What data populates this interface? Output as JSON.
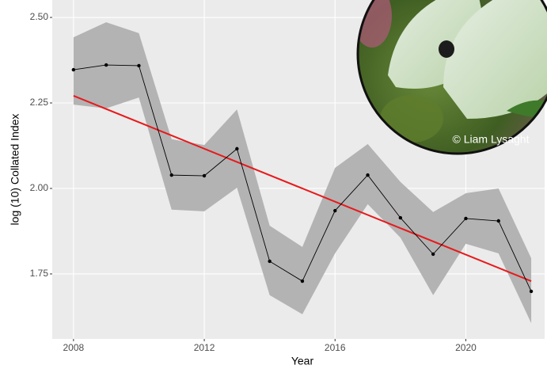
{
  "chart_data": {
    "type": "line",
    "xlabel": "Year",
    "ylabel": "log (10) Collated Index",
    "annotation": "© Liam Lysaght",
    "x": [
      2008,
      2009,
      2010,
      2011,
      2012,
      2013,
      2014,
      2015,
      2016,
      2017,
      2018,
      2019,
      2020,
      2021,
      2022
    ],
    "values": [
      2.347,
      2.361,
      2.359,
      2.039,
      2.037,
      2.116,
      1.787,
      1.729,
      1.935,
      2.039,
      1.914,
      1.808,
      1.912,
      1.905,
      1.699
    ],
    "upper": [
      2.442,
      2.486,
      2.454,
      2.144,
      2.127,
      2.231,
      1.891,
      1.829,
      2.06,
      2.13,
      2.019,
      1.931,
      1.986,
      2.0,
      1.796
    ],
    "lower": [
      2.245,
      2.234,
      2.266,
      1.938,
      1.933,
      2.002,
      1.688,
      1.632,
      1.81,
      1.954,
      1.856,
      1.688,
      1.838,
      1.81,
      1.606
    ],
    "color": "#000000",
    "band_color": "#b3b3b3",
    "trend": {
      "x": [
        2008,
        2022
      ],
      "values": [
        2.271,
        1.729
      ],
      "color": "#e8191c"
    },
    "xlim": [
      2007.35,
      2022.41
    ],
    "ylim": [
      1.56,
      2.551
    ],
    "xticks": [
      2008,
      2012,
      2016,
      2020
    ],
    "yticks": [
      {
        "value": 2.5,
        "label": "2.50"
      },
      {
        "value": 2.25,
        "label": "2.25"
      },
      {
        "value": 2.0,
        "label": "2.00"
      },
      {
        "value": 1.75,
        "label": "1.75"
      }
    ],
    "grid": true
  }
}
